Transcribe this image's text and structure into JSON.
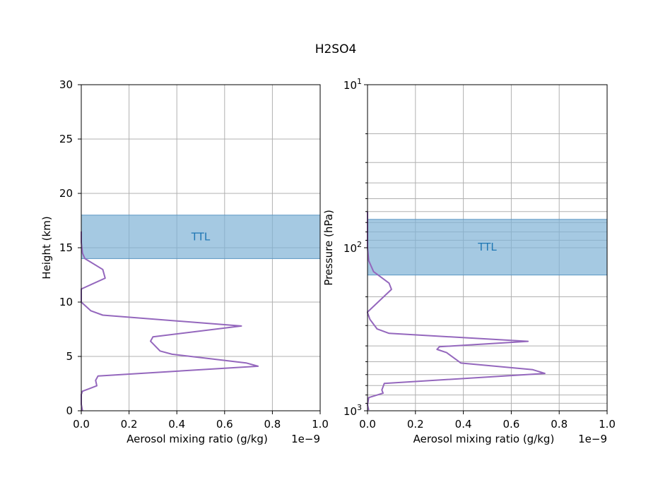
{
  "figure": {
    "title": "H2SO4"
  },
  "chart_data": [
    {
      "type": "line",
      "xlabel": "Aerosol mixing ratio (g/kg)",
      "ylabel": "Height (km)",
      "x_offset_label": "1e−9",
      "xlim": [
        0,
        1e-09
      ],
      "ylim": [
        0,
        30
      ],
      "xticks": [
        0.0,
        0.2,
        0.4,
        0.6,
        0.8,
        1.0
      ],
      "xtick_labels": [
        "0.0",
        "0.2",
        "0.4",
        "0.6",
        "0.8",
        "1.0"
      ],
      "yticks": [
        0,
        5,
        10,
        15,
        20,
        25,
        30
      ],
      "ytick_labels": [
        "0",
        "5",
        "10",
        "15",
        "20",
        "25",
        "30"
      ],
      "grid": true,
      "band": {
        "label": "TTL",
        "from": 14,
        "to": 18,
        "color": "#7fb2d6"
      },
      "line_color": "#9467bd",
      "series": [
        {
          "x": [
            5e-12,
            0.0,
            0.0,
            5e-12,
            6.5e-11,
            6e-11,
            7e-11,
            7.4e-10,
            6.9e-10,
            3.8e-10,
            3.3e-10,
            2.9e-10,
            3e-10,
            6.7e-10,
            9e-11,
            4e-11,
            1e-11,
            0.0,
            0.0,
            1e-10,
            9e-11,
            1.5e-11,
            5e-12,
            0.0,
            0.0
          ],
          "y": [
            0.0,
            0.6,
            1.5,
            1.8,
            2.3,
            2.8,
            3.2,
            4.1,
            4.4,
            5.2,
            5.5,
            6.4,
            6.8,
            7.8,
            8.8,
            9.2,
            9.8,
            10.0,
            11.2,
            12.2,
            13.0,
            14.0,
            14.5,
            15.5,
            16.5
          ]
        }
      ]
    },
    {
      "type": "line",
      "xlabel": "Aerosol mixing ratio (g/kg)",
      "ylabel": "Pressure (hPa)",
      "x_offset_label": "1e−9",
      "xlim": [
        0,
        1e-09
      ],
      "ylim": [
        1000,
        10
      ],
      "yscale": "log",
      "xticks": [
        0.0,
        0.2,
        0.4,
        0.6,
        0.8,
        1.0
      ],
      "xtick_labels": [
        "0.0",
        "0.2",
        "0.4",
        "0.6",
        "0.8",
        "1.0"
      ],
      "ytick_major": [
        10,
        100,
        1000
      ],
      "ytick_major_labels": [
        {
          "base": "10",
          "exp": "1"
        },
        {
          "base": "10",
          "exp": "2"
        },
        {
          "base": "10",
          "exp": "3"
        }
      ],
      "grid": true,
      "band": {
        "label": "TTL",
        "from": 67,
        "to": 147,
        "color": "#7fb2d6"
      },
      "line_color": "#9467bd",
      "series": [
        {
          "x": [
            5e-12,
            0.0,
            5e-12,
            6.5e-11,
            6e-11,
            7e-11,
            7.4e-10,
            6.9e-10,
            3.9e-10,
            3.3e-10,
            2.9e-10,
            3e-10,
            6.7e-10,
            9e-11,
            4e-11,
            1e-11,
            0.0,
            0.0,
            1e-10,
            9e-11,
            2.5e-11,
            5e-12,
            0.0,
            0.0
          ],
          "y": [
            990,
            920,
            830,
            780,
            745,
            680,
            590,
            560,
            510,
            440,
            420,
            405,
            375,
            335,
            315,
            275,
            250,
            248,
            180,
            165,
            140,
            120,
            100,
            60
          ]
        }
      ]
    }
  ]
}
